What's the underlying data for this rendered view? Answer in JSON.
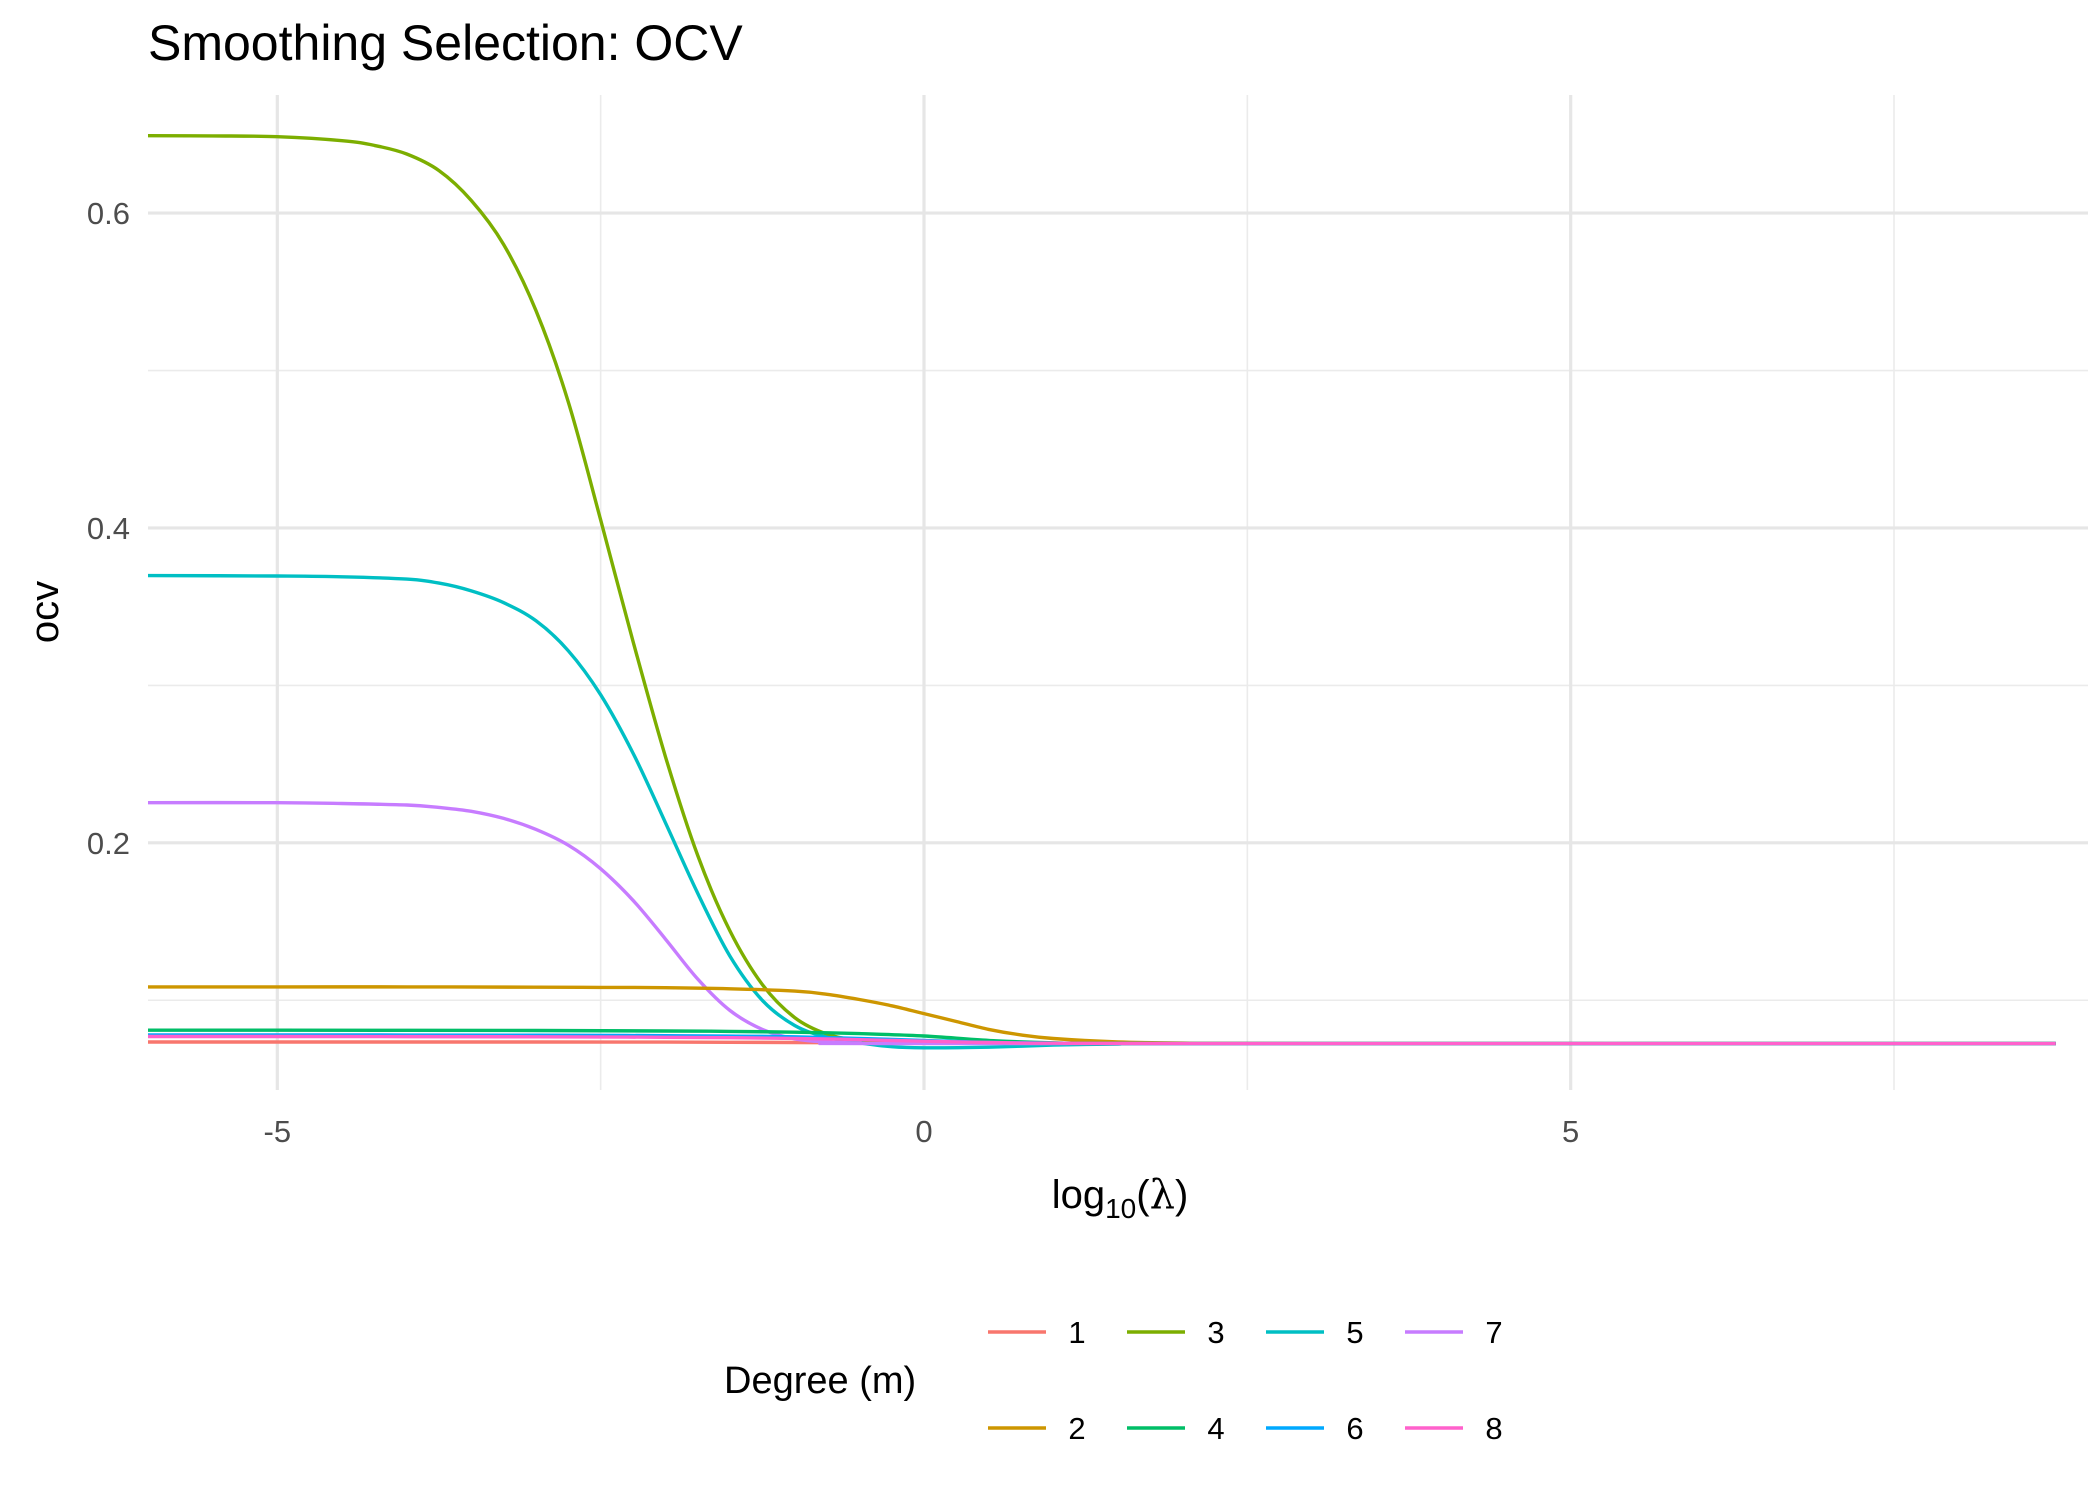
{
  "chart_data": {
    "type": "line",
    "title": "Smoothing Selection: OCV",
    "xlabel": {
      "prefix": "log",
      "subscript": "10",
      "open": "(",
      "symbol": "λ",
      "close": ")"
    },
    "ylabel": "ocv",
    "xlim": [
      -6.0,
      9.0
    ],
    "ylim": [
      0.043,
      0.675
    ],
    "x_ticks": [
      {
        "value": -5,
        "label": "-5"
      },
      {
        "value": 0,
        "label": "0"
      },
      {
        "value": 5,
        "label": "5"
      }
    ],
    "x_minor_ticks": [
      -2.5,
      2.5,
      7.5
    ],
    "y_ticks": [
      {
        "value": 0.2,
        "label": "0.2"
      },
      {
        "value": 0.4,
        "label": "0.4"
      },
      {
        "value": 0.6,
        "label": "0.6"
      }
    ],
    "y_minor_ticks": [
      0.1,
      0.3,
      0.5
    ],
    "grid": true,
    "legend": {
      "title": "Degree (m)",
      "position": "bottom"
    },
    "series": [
      {
        "name": "1",
        "color": "#F8766D",
        "points": [
          [
            -7.0,
            0.0735
          ],
          [
            -5.0,
            0.0735
          ],
          [
            -3.0,
            0.0735
          ],
          [
            -2.0,
            0.0734
          ],
          [
            -1.0,
            0.0732
          ],
          [
            0.0,
            0.0728
          ],
          [
            1.0,
            0.0726
          ],
          [
            2.0,
            0.0725
          ],
          [
            5.0,
            0.0725
          ],
          [
            9.0,
            0.0725
          ]
        ]
      },
      {
        "name": "3",
        "color": "#7CAE00",
        "points": [
          [
            -7.0,
            0.6495
          ],
          [
            -5.5,
            0.649
          ],
          [
            -5.0,
            0.6485
          ],
          [
            -4.5,
            0.646
          ],
          [
            -4.25,
            0.643
          ],
          [
            -4.0,
            0.6375
          ],
          [
            -3.75,
            0.627
          ],
          [
            -3.5,
            0.608
          ],
          [
            -3.25,
            0.58
          ],
          [
            -3.0,
            0.538
          ],
          [
            -2.75,
            0.48
          ],
          [
            -2.5,
            0.405
          ],
          [
            -2.25,
            0.328
          ],
          [
            -2.0,
            0.255
          ],
          [
            -1.75,
            0.192
          ],
          [
            -1.5,
            0.144
          ],
          [
            -1.25,
            0.11
          ],
          [
            -1.0,
            0.089
          ],
          [
            -0.75,
            0.0785
          ],
          [
            -0.5,
            0.0745
          ],
          [
            -0.25,
            0.0735
          ],
          [
            0.0,
            0.073
          ],
          [
            0.5,
            0.0727
          ],
          [
            1.0,
            0.0726
          ],
          [
            2.0,
            0.0725
          ],
          [
            9.0,
            0.0725
          ]
        ]
      },
      {
        "name": "5",
        "color": "#00BFC4",
        "points": [
          [
            -7.0,
            0.37
          ],
          [
            -5.0,
            0.3695
          ],
          [
            -4.5,
            0.369
          ],
          [
            -4.0,
            0.3675
          ],
          [
            -3.75,
            0.365
          ],
          [
            -3.5,
            0.36
          ],
          [
            -3.25,
            0.3525
          ],
          [
            -3.0,
            0.341
          ],
          [
            -2.75,
            0.322
          ],
          [
            -2.5,
            0.294
          ],
          [
            -2.25,
            0.257
          ],
          [
            -2.0,
            0.213
          ],
          [
            -1.75,
            0.168
          ],
          [
            -1.5,
            0.128
          ],
          [
            -1.25,
            0.1
          ],
          [
            -1.0,
            0.084
          ],
          [
            -0.75,
            0.0765
          ],
          [
            -0.5,
            0.073
          ],
          [
            -0.25,
            0.0705
          ],
          [
            0.0,
            0.0698
          ],
          [
            0.5,
            0.0702
          ],
          [
            1.0,
            0.0715
          ],
          [
            1.5,
            0.0722
          ],
          [
            2.0,
            0.0725
          ],
          [
            9.0,
            0.0725
          ]
        ]
      },
      {
        "name": "7",
        "color": "#C77CFF",
        "points": [
          [
            -7.0,
            0.2255
          ],
          [
            -5.0,
            0.2255
          ],
          [
            -4.5,
            0.225
          ],
          [
            -4.0,
            0.224
          ],
          [
            -3.75,
            0.2225
          ],
          [
            -3.5,
            0.22
          ],
          [
            -3.25,
            0.2155
          ],
          [
            -3.0,
            0.2085
          ],
          [
            -2.75,
            0.1985
          ],
          [
            -2.5,
            0.1835
          ],
          [
            -2.25,
            0.1635
          ],
          [
            -2.0,
            0.139
          ],
          [
            -1.75,
            0.1135
          ],
          [
            -1.5,
            0.0935
          ],
          [
            -1.25,
            0.0815
          ],
          [
            -1.0,
            0.0755
          ],
          [
            -0.75,
            0.0735
          ],
          [
            -0.5,
            0.0728
          ],
          [
            0.0,
            0.0725
          ],
          [
            9.0,
            0.0725
          ]
        ]
      },
      {
        "name": "2",
        "color": "#CD9600",
        "points": [
          [
            -7.0,
            0.1085
          ],
          [
            -5.0,
            0.1085
          ],
          [
            -4.0,
            0.1085
          ],
          [
            -3.0,
            0.1083
          ],
          [
            -2.5,
            0.1082
          ],
          [
            -2.0,
            0.108
          ],
          [
            -1.5,
            0.1073
          ],
          [
            -1.0,
            0.1058
          ],
          [
            -0.75,
            0.1038
          ],
          [
            -0.5,
            0.1005
          ],
          [
            -0.25,
            0.0965
          ],
          [
            0.0,
            0.0915
          ],
          [
            0.25,
            0.0865
          ],
          [
            0.5,
            0.0815
          ],
          [
            0.75,
            0.078
          ],
          [
            1.0,
            0.0757
          ],
          [
            1.5,
            0.0735
          ],
          [
            2.0,
            0.0728
          ],
          [
            3.0,
            0.0725
          ],
          [
            9.0,
            0.0725
          ]
        ]
      },
      {
        "name": "4",
        "color": "#00BE67",
        "points": [
          [
            -7.0,
            0.081
          ],
          [
            -5.0,
            0.081
          ],
          [
            -3.0,
            0.0808
          ],
          [
            -2.0,
            0.0805
          ],
          [
            -1.5,
            0.0802
          ],
          [
            -1.0,
            0.0797
          ],
          [
            -0.5,
            0.0788
          ],
          [
            0.0,
            0.0773
          ],
          [
            0.5,
            0.0745
          ],
          [
            1.0,
            0.073
          ],
          [
            2.0,
            0.0725
          ],
          [
            9.0,
            0.0725
          ]
        ]
      },
      {
        "name": "6",
        "color": "#00A9FF",
        "points": [
          [
            -7.0,
            0.078
          ],
          [
            -5.0,
            0.078
          ],
          [
            -3.0,
            0.0778
          ],
          [
            -2.0,
            0.0775
          ],
          [
            -1.0,
            0.0768
          ],
          [
            0.0,
            0.0745
          ],
          [
            0.5,
            0.0733
          ],
          [
            1.0,
            0.0728
          ],
          [
            2.0,
            0.0725
          ],
          [
            9.0,
            0.0725
          ]
        ]
      },
      {
        "name": "8",
        "color": "#FF61CC",
        "points": [
          [
            -7.0,
            0.077
          ],
          [
            -5.0,
            0.077
          ],
          [
            -3.0,
            0.0768
          ],
          [
            -2.0,
            0.0765
          ],
          [
            -1.0,
            0.0758
          ],
          [
            0.0,
            0.074
          ],
          [
            0.5,
            0.0732
          ],
          [
            1.0,
            0.0727
          ],
          [
            2.0,
            0.0725
          ],
          [
            9.0,
            0.0725
          ]
        ]
      }
    ],
    "legend_order": [
      [
        "1",
        "3",
        "5",
        "7"
      ],
      [
        "2",
        "4",
        "6",
        "8"
      ]
    ]
  }
}
